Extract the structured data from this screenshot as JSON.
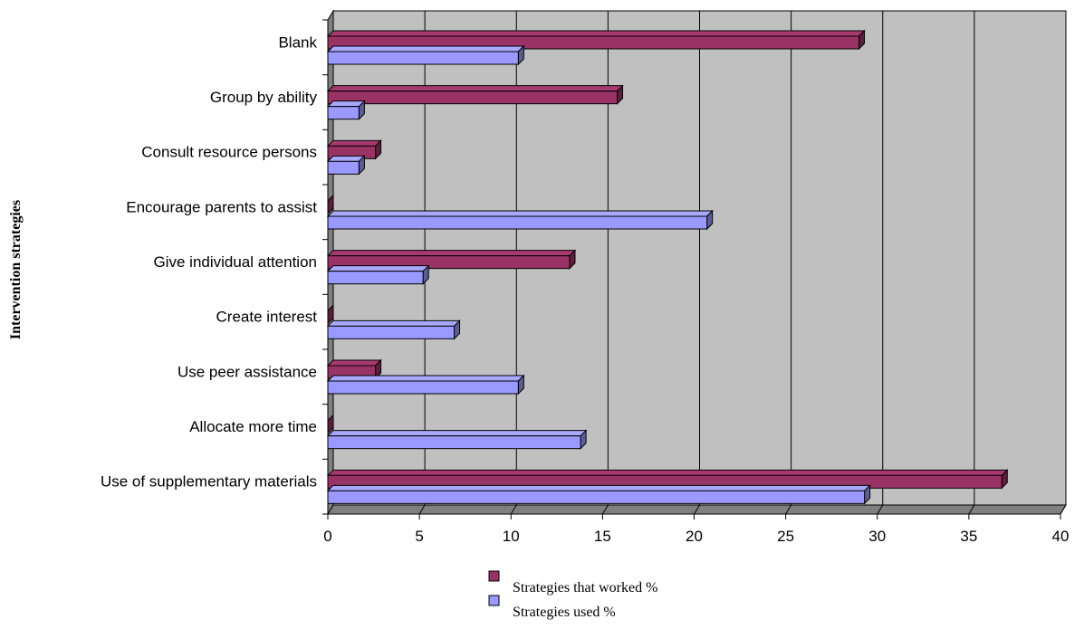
{
  "chart_data": {
    "type": "bar",
    "orientation": "horizontal",
    "style": "3d",
    "ylabel": "Intervention strategies",
    "xlabel": "",
    "xlim": [
      0,
      40
    ],
    "xticks": [
      0,
      5,
      10,
      15,
      20,
      25,
      30,
      35,
      40
    ],
    "grid": true,
    "legend_position": "bottom",
    "categories": [
      "Blank",
      "Group by ability",
      "Consult resource persons",
      "Encourage parents to assist",
      "Give individual attention",
      "Create interest",
      "Use peer assistance",
      "Allocate more time",
      "Use of supplementary materials"
    ],
    "series": [
      {
        "name": "Strategies that worked %",
        "color": "#993366",
        "values": [
          29,
          15.8,
          2.6,
          0,
          13.2,
          0,
          2.6,
          0,
          36.8
        ]
      },
      {
        "name": "Strategies used %",
        "color": "#9999FF",
        "values": [
          10.4,
          1.7,
          1.7,
          20.7,
          5.2,
          6.9,
          10.4,
          13.8,
          29.3
        ]
      }
    ],
    "colors": {
      "plot_background": "#C0C0C0",
      "grid": "#000000"
    }
  }
}
